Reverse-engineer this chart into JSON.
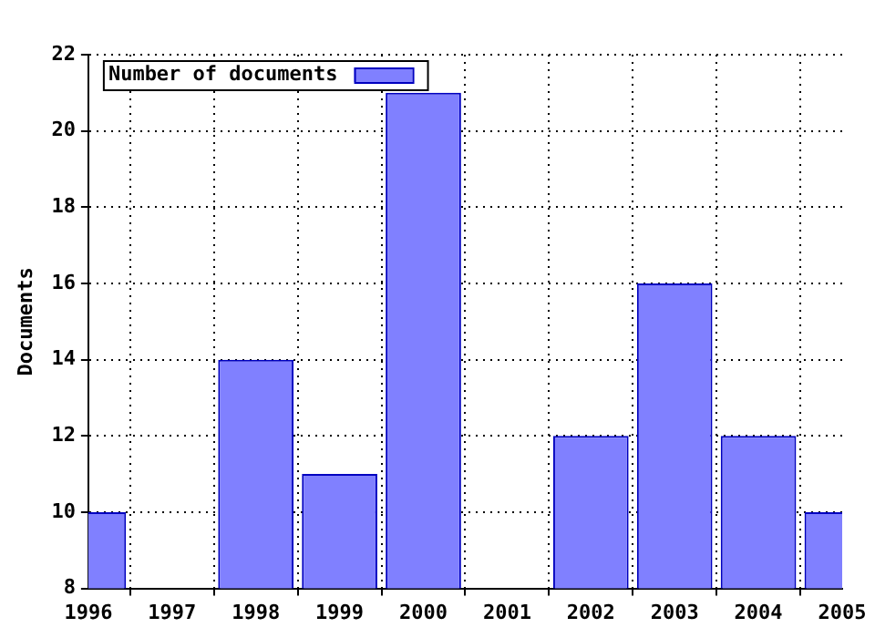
{
  "chart_data": {
    "type": "bar",
    "ylabel": "Documents",
    "x": [
      1996,
      1997,
      1998,
      1999,
      2000,
      2001,
      2002,
      2003,
      2004,
      2005
    ],
    "series": [
      {
        "name": "Number of documents",
        "color": "#8080ff",
        "values": [
          10,
          null,
          14,
          11,
          21,
          null,
          12,
          16,
          12,
          10
        ]
      }
    ],
    "xlim": [
      1996,
      2005
    ],
    "xticks": [
      1996,
      1997,
      1998,
      1999,
      2000,
      2001,
      2002,
      2003,
      2004,
      2005
    ],
    "ylim": [
      8,
      22
    ],
    "yticks": [
      8,
      10,
      12,
      14,
      16,
      18,
      20,
      22
    ],
    "grid": true,
    "legend": "top left"
  }
}
